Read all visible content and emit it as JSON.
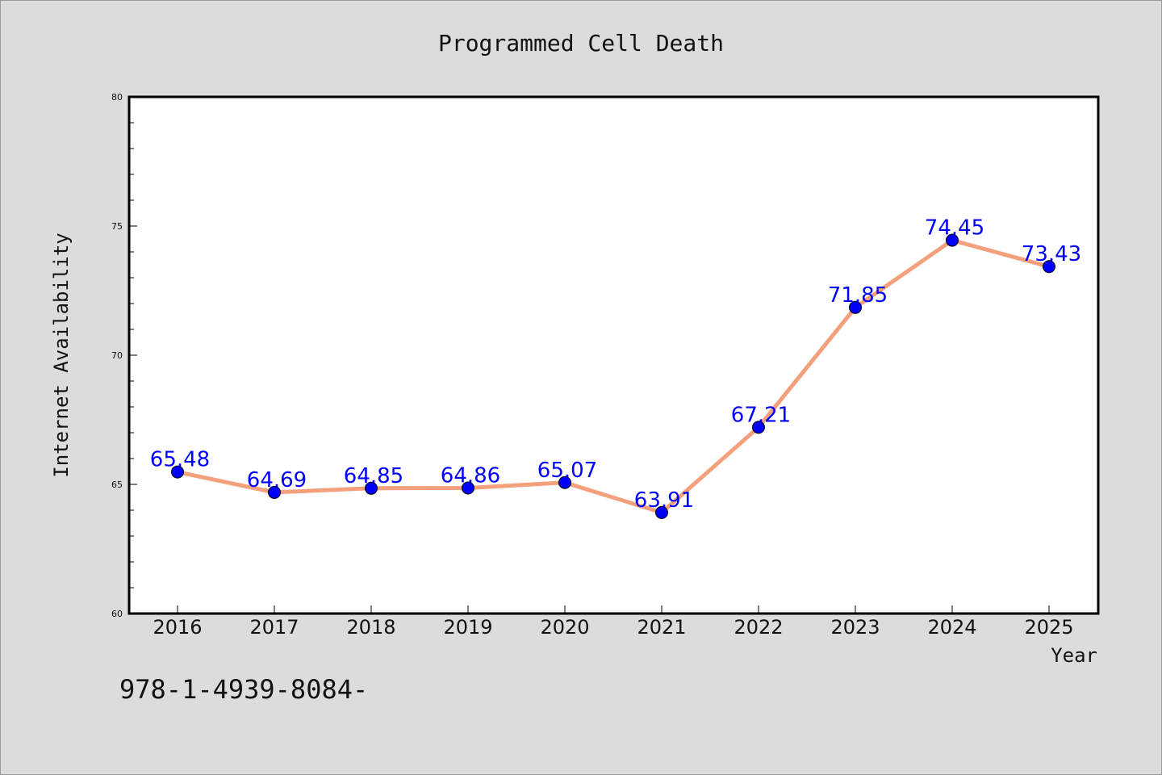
{
  "chart_data": {
    "type": "line",
    "title": "Programmed Cell Death",
    "xlabel": "Year",
    "ylabel": "Internet Availability",
    "x": [
      "2016",
      "2017",
      "2018",
      "2019",
      "2020",
      "2021",
      "2022",
      "2023",
      "2024",
      "2025"
    ],
    "series": [
      {
        "values": [
          65.48,
          64.69,
          64.85,
          64.86,
          65.07,
          63.91,
          67.21,
          71.85,
          74.45,
          73.43
        ],
        "labels": [
          "65.48",
          "64.69",
          "64.85",
          "64.86",
          "65.07",
          "63.91",
          "67.21",
          "71.85",
          "74.45",
          "73.43"
        ],
        "line_color": "#f4a07c",
        "marker_color": "#0000ff"
      }
    ],
    "ylim": [
      60,
      80
    ],
    "yticks": [
      60,
      65,
      70,
      75,
      80
    ],
    "grid": false,
    "legend": "none"
  },
  "annotation": "978-1-4939-8084-",
  "colors": {
    "background": "#dcdcdc",
    "plot_background": "#ffffff",
    "label_color": "#0000ff"
  }
}
